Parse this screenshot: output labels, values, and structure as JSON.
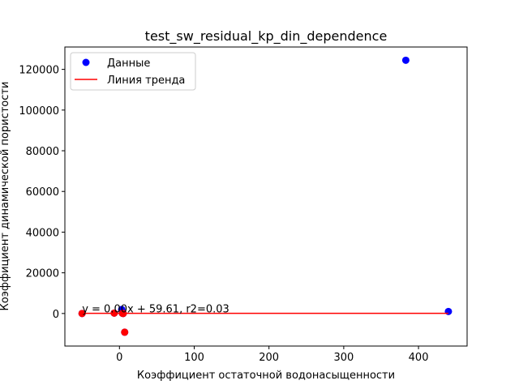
{
  "chart_data": {
    "type": "scatter",
    "title": "test_sw_residual_kp_din_dependence",
    "xlabel": "Коэффициент остаточной водонасыщенности",
    "ylabel": "Коэффициент динамической пористости",
    "xlim": [
      -73,
      465
    ],
    "ylim": [
      -16000,
      131000
    ],
    "x_ticks": [
      0,
      100,
      200,
      300,
      400
    ],
    "y_ticks": [
      0,
      20000,
      40000,
      60000,
      80000,
      100000,
      120000
    ],
    "grid": false,
    "legend_position": "top-left",
    "legend": [
      "Данные",
      "Линия тренда"
    ],
    "colors": {
      "data": "#0000ff",
      "outlier": "#ff0000",
      "trend": "#ff0000"
    },
    "series": [
      {
        "name": "Данные",
        "kind": "scatter",
        "color": "#0000ff",
        "x": [
          383,
          440,
          3,
          -50,
          -7,
          4,
          5,
          7
        ],
        "y": [
          124500,
          1000,
          2000,
          0,
          200,
          100,
          0,
          -9200
        ]
      },
      {
        "name": "Линия тренда",
        "kind": "line",
        "color": "#ff0000",
        "x": [
          -50,
          440
        ],
        "y": [
          59.61,
          59.61
        ]
      }
    ],
    "outliers": {
      "color": "#ff0000",
      "x": [
        -50,
        -7,
        4,
        5,
        7
      ],
      "y": [
        0,
        200,
        100,
        0,
        -9200
      ]
    },
    "annotation": {
      "text": "y = 0.00x + 59.61, r2=0.03",
      "x": -50,
      "y": 59.61
    }
  }
}
